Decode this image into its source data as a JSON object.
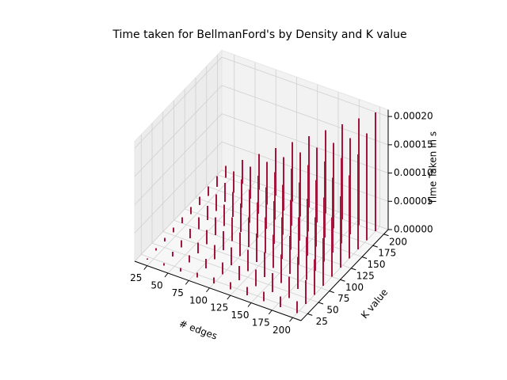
{
  "chart_data": {
    "type": "bar3d",
    "title": "Time taken for BellmanFord's by Density and K value",
    "xlabel": "# edges",
    "ylabel": "K value",
    "zlabel": "Time Taken in s",
    "color": "#a3163c",
    "x": [
      20,
      40,
      60,
      80,
      100,
      120,
      140,
      160,
      180,
      200
    ],
    "y": [
      20,
      40,
      60,
      80,
      100,
      120,
      140,
      160,
      180,
      200
    ],
    "z": [
      [
        2.1e-06,
        4.2e-06,
        6.3e-06,
        8.4e-06,
        1.05e-05,
        1.26e-05,
        1.47e-05,
        1.68e-05,
        1.89e-05,
        2.1e-05
      ],
      [
        4.2e-06,
        8.4e-06,
        1.26e-05,
        1.68e-05,
        2.1e-05,
        2.52e-05,
        2.94e-05,
        3.36e-05,
        3.78e-05,
        4.2e-05
      ],
      [
        6.3e-06,
        1.26e-05,
        1.89e-05,
        2.52e-05,
        3.15e-05,
        3.78e-05,
        4.41e-05,
        5.04e-05,
        5.67e-05,
        6.3e-05
      ],
      [
        8.4e-06,
        1.68e-05,
        2.52e-05,
        3.36e-05,
        4.2e-05,
        5.04e-05,
        5.88e-05,
        6.72e-05,
        7.56e-05,
        8.4e-05
      ],
      [
        1.05e-05,
        2.1e-05,
        3.15e-05,
        4.2e-05,
        5.25e-05,
        6.3e-05,
        7.35e-05,
        8.4e-05,
        9.45e-05,
        0.000105
      ],
      [
        1.26e-05,
        2.52e-05,
        3.78e-05,
        5.04e-05,
        6.3e-05,
        7.56e-05,
        8.82e-05,
        0.0001008,
        0.0001134,
        0.000126
      ],
      [
        1.47e-05,
        2.94e-05,
        4.41e-05,
        5.88e-05,
        7.35e-05,
        8.82e-05,
        0.0001029,
        0.0001176,
        0.0001323,
        0.000147
      ],
      [
        1.68e-05,
        3.36e-05,
        5.04e-05,
        6.72e-05,
        8.4e-05,
        0.0001008,
        0.0001176,
        0.0001344,
        0.0001512,
        0.000168
      ],
      [
        1.89e-05,
        3.78e-05,
        5.67e-05,
        7.56e-05,
        9.45e-05,
        0.0001134,
        0.0001323,
        0.0001512,
        0.0001701,
        0.000189
      ],
      [
        2.1e-05,
        4.2e-05,
        6.3e-05,
        8.4e-05,
        0.000105,
        0.000126,
        0.000147,
        0.000168,
        0.000189,
        0.00021
      ]
    ],
    "xlim": [
      10,
      210
    ],
    "ylim": [
      10,
      210
    ],
    "zlim": [
      0,
      0.00021
    ],
    "xticks": [
      25,
      50,
      75,
      100,
      125,
      150,
      175,
      200
    ],
    "yticks": [
      25,
      50,
      75,
      100,
      125,
      150,
      175,
      200
    ],
    "zticks": [
      {
        "value": 0,
        "label": "0.00000"
      },
      {
        "value": 5e-05,
        "label": "0.00005"
      },
      {
        "value": 0.0001,
        "label": "0.00010"
      },
      {
        "value": 0.00015,
        "label": "0.00015"
      },
      {
        "value": 0.0002,
        "label": "0.00020"
      }
    ],
    "grid": true
  }
}
